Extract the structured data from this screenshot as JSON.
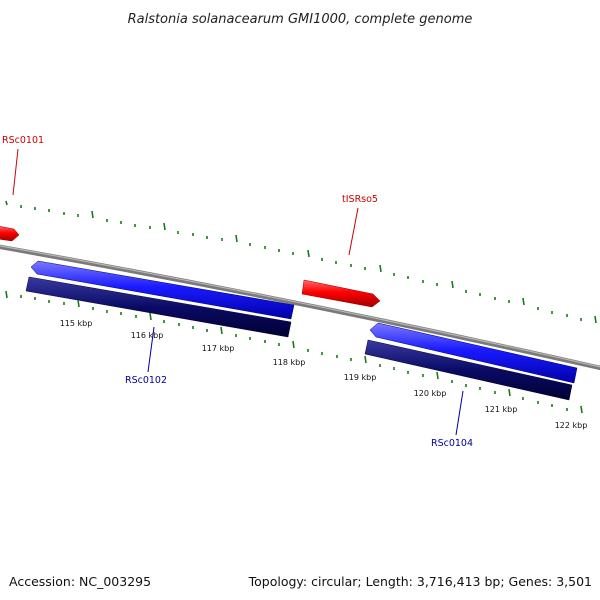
{
  "title": "Ralstonia solanacearum GMI1000, complete genome",
  "footer": {
    "accession": "Accession: NC_003295",
    "summary": "Topology: circular; Length: 3,716,413 bp; Genes: 3,501"
  },
  "colors": {
    "forward_gene": "#ff0000",
    "reverse_gene_outer": "#1a1aff",
    "reverse_gene_inner": "#0a0a66",
    "backbone": "#808080",
    "ticks": "#1a7a1a",
    "forward_label": "#cc0000",
    "reverse_label": "#00009c"
  },
  "ticks": {
    "unit": "kbp",
    "labels": [
      "115 kbp",
      "116 kbp",
      "117 kbp",
      "118 kbp",
      "119 kbp",
      "120 kbp",
      "121 kbp",
      "122 kbp"
    ]
  },
  "genes": {
    "forward": [
      {
        "name": "RSc0101"
      },
      {
        "name": "tISRso5"
      }
    ],
    "reverse": [
      {
        "name": "RSc0102"
      },
      {
        "name": "RSc0104"
      }
    ]
  }
}
